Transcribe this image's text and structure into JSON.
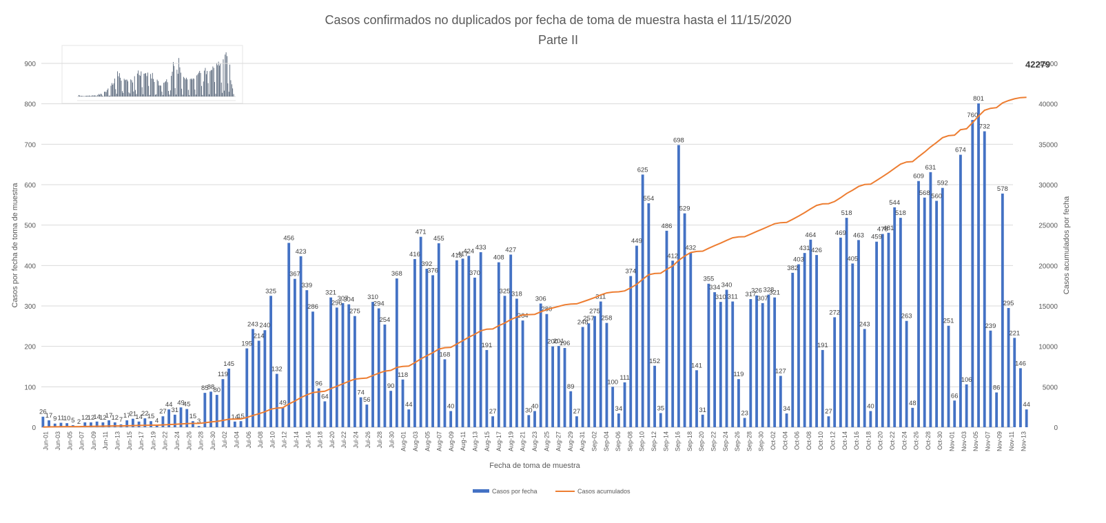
{
  "chart_data": {
    "type": "bar",
    "title": "Casos confirmados no duplicados por fecha de toma de muestra hasta el 11/15/2020",
    "subtitle": "Parte II",
    "xlabel": "Fecha de toma de muestra",
    "ylabel_left": "Casos por fecha de toma de muestra",
    "ylabel_right": "Casos acumulados por fecha",
    "ylim_left": [
      0,
      900
    ],
    "yticks_left": [
      0,
      100,
      200,
      300,
      400,
      500,
      600,
      700,
      800,
      900
    ],
    "ylim_right": [
      0,
      45000
    ],
    "yticks_right": [
      0,
      5000,
      10000,
      15000,
      20000,
      25000,
      30000,
      35000,
      40000,
      45000
    ],
    "grid": true,
    "legend_position": "bottom",
    "final_cumulative_label": "42279",
    "x_tick_labels": [
      "Jun-01",
      "Jun-03",
      "Jun-05",
      "Jun-07",
      "Jun-09",
      "Jun-11",
      "Jun-13",
      "Jun-15",
      "Jun-17",
      "Jun-19",
      "Jun-22",
      "Jun-24",
      "Jun-26",
      "Jun-28",
      "Jun-30",
      "Jul-02",
      "Jul-04",
      "Jul-06",
      "Jul-08",
      "Jul-10",
      "Jul-12",
      "Jul-14",
      "Jul-16",
      "Jul-18",
      "Jul-20",
      "Jul-22",
      "Jul-24",
      "Jul-26",
      "Jul-28",
      "Jul-30",
      "Aug-01",
      "Aug-03",
      "Aug-05",
      "Aug-07",
      "Aug-09",
      "Aug-11",
      "Aug-13",
      "Aug-15",
      "Aug-17",
      "Aug-19",
      "Aug-21",
      "Aug-23",
      "Aug-25",
      "Aug-27",
      "Aug-29",
      "Aug-31",
      "Sep-02",
      "Sep-04",
      "Sep-06",
      "Sep-08",
      "Sep-10",
      "Sep-12",
      "Sep-14",
      "Sep-16",
      "Sep-18",
      "Sep-20",
      "Sep-22",
      "Sep-24",
      "Sep-26",
      "Sep-28",
      "Sep-30",
      "Oct-02",
      "Oct-04",
      "Oct-06",
      "Oct-08",
      "Oct-10",
      "Oct-12",
      "Oct-14",
      "Oct-16",
      "Oct-18",
      "Oct-20",
      "Oct-22",
      "Oct-24",
      "Oct-26",
      "Oct-28",
      "Oct-30",
      "Nov-01",
      "Nov-03",
      "Nov-05",
      "Nov-07",
      "Nov-09",
      "Nov-11",
      "Nov-13"
    ],
    "values": [
      26,
      17,
      9,
      11,
      10,
      5,
      2,
      12,
      12,
      14,
      12,
      17,
      12,
      7,
      17,
      21,
      14,
      22,
      15,
      4,
      27,
      44,
      31,
      49,
      45,
      15,
      3,
      85,
      88,
      80,
      119,
      145,
      14,
      15,
      195,
      243,
      214,
      240,
      325,
      132,
      49,
      456,
      367,
      423,
      339,
      286,
      96,
      64,
      321,
      296,
      307,
      304,
      275,
      74,
      56,
      310,
      294,
      254,
      90,
      368,
      118,
      44,
      416,
      471,
      392,
      376,
      455,
      168,
      40,
      413,
      417,
      424,
      370,
      433,
      191,
      27,
      408,
      325,
      427,
      318,
      264,
      30,
      40,
      306,
      280,
      200,
      201,
      196,
      89,
      27,
      248,
      257,
      275,
      311,
      258,
      100,
      34,
      111,
      374,
      449,
      625,
      554,
      152,
      35,
      486,
      412,
      698,
      529,
      432,
      141,
      31,
      355,
      334,
      310,
      340,
      311,
      119,
      23,
      317,
      326,
      307,
      328,
      321,
      127,
      34,
      382,
      403,
      431,
      464,
      426,
      191,
      27,
      272,
      469,
      518,
      405,
      463,
      243,
      40,
      459,
      478,
      481,
      544,
      518,
      263,
      48,
      609,
      568,
      631,
      560,
      592,
      251,
      66,
      674,
      106,
      760,
      801,
      732,
      239,
      86,
      578,
      295,
      221,
      146,
      44
    ],
    "series": [
      {
        "name": "Casos por fecha",
        "type": "bar",
        "color": "#4472C4"
      },
      {
        "name": "Casos acumulados",
        "type": "line",
        "color": "#ED7D31"
      }
    ]
  }
}
